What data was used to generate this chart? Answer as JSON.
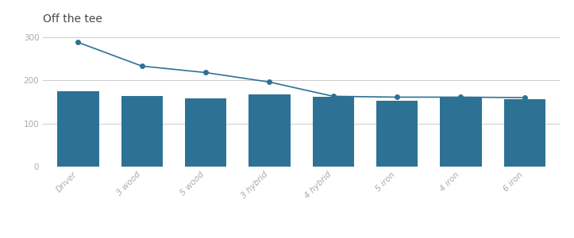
{
  "title": "Off the tee",
  "categories": [
    "Driver",
    "3 wood",
    "5 wood",
    "3 hybrid",
    "4 hybrid",
    "5 iron",
    "4 iron",
    "6 iron"
  ],
  "bar_values": [
    175,
    163,
    158,
    167,
    162,
    153,
    162,
    157
  ],
  "line_values": [
    288,
    233,
    218,
    196,
    163,
    161,
    161,
    160
  ],
  "bar_color": "#2d7295",
  "line_color": "#2d7295",
  "background_color": "#ffffff",
  "grid_color": "#cccccc",
  "title_color": "#4a4a4a",
  "tick_label_color": "#aaaaaa",
  "ylim": [
    0,
    320
  ],
  "yticks": [
    0,
    100,
    200,
    300
  ],
  "title_fontsize": 10,
  "tick_fontsize": 7.5,
  "line_width": 1.2,
  "marker_size": 4,
  "bar_width": 0.65
}
